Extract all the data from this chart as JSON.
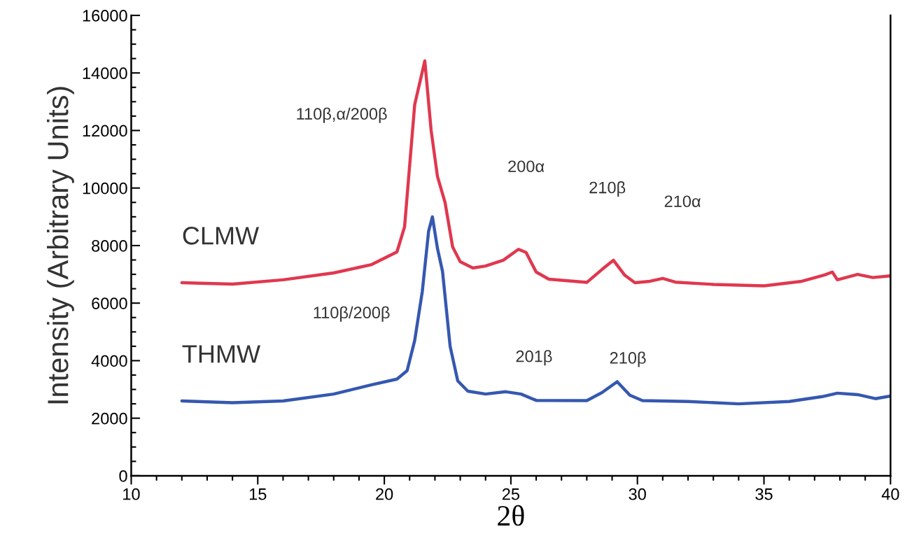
{
  "chart_data": {
    "type": "line",
    "xlabel": "2θ",
    "ylabel": "Intensity (Arbitrary Units)",
    "xlim": [
      10,
      40
    ],
    "xticks": [
      10,
      15,
      20,
      25,
      30,
      35,
      40
    ],
    "ylim": [
      0,
      16000
    ],
    "yticks": [
      0,
      2000,
      4000,
      6000,
      8000,
      10000,
      12000,
      14000,
      16000
    ],
    "grid": false,
    "legend": false,
    "marker": "none",
    "line_style": "solid",
    "series": [
      {
        "name": "CLMW",
        "color": "#e0384f",
        "x": [
          12,
          14,
          16,
          18,
          19.5,
          20.5,
          20.8,
          21.2,
          21.6,
          21.85,
          22.1,
          22.4,
          22.7,
          23.0,
          23.5,
          24.0,
          24.7,
          25.3,
          25.6,
          26.0,
          26.5,
          28.0,
          28.6,
          29.05,
          29.5,
          29.9,
          30.5,
          31.0,
          31.5,
          33,
          35,
          36.5,
          37.4,
          37.7,
          37.9,
          38.7,
          39.3,
          40
        ],
        "values": [
          6710,
          6660,
          6810,
          7050,
          7340,
          7780,
          8650,
          12900,
          14420,
          12000,
          10400,
          9500,
          7950,
          7440,
          7220,
          7290,
          7490,
          7870,
          7760,
          7080,
          6830,
          6720,
          7170,
          7490,
          6970,
          6710,
          6760,
          6860,
          6730,
          6650,
          6600,
          6760,
          6980,
          7080,
          6810,
          7000,
          6890,
          6950
        ]
      },
      {
        "name": "THMW",
        "color": "#3558b0",
        "x": [
          12,
          14,
          16,
          18,
          19.5,
          20.5,
          20.9,
          21.2,
          21.5,
          21.75,
          21.9,
          22.1,
          22.3,
          22.6,
          22.9,
          23.3,
          24.0,
          24.8,
          25.4,
          26.0,
          28.0,
          28.6,
          29.2,
          29.7,
          30.2,
          32,
          34,
          36,
          37.3,
          37.9,
          38.7,
          39.4,
          40
        ],
        "values": [
          2600,
          2540,
          2600,
          2840,
          3160,
          3360,
          3650,
          4700,
          6400,
          8500,
          9000,
          7900,
          7100,
          4500,
          3300,
          2940,
          2840,
          2920,
          2840,
          2620,
          2610,
          2890,
          3270,
          2800,
          2610,
          2580,
          2500,
          2580,
          2750,
          2870,
          2820,
          2680,
          2770
        ]
      }
    ],
    "annotations": [
      {
        "text": "110β,α/200β",
        "x": 21.2,
        "y": 12900
      },
      {
        "text": "110β/200β",
        "x": 21.5,
        "y": 6400
      },
      "200α",
      "210β",
      "210α",
      {
        "text": "201β",
        "x": 24.8,
        "y": 2920
      },
      {
        "text": "210β",
        "x": 29.2,
        "y": 3270
      }
    ]
  }
}
